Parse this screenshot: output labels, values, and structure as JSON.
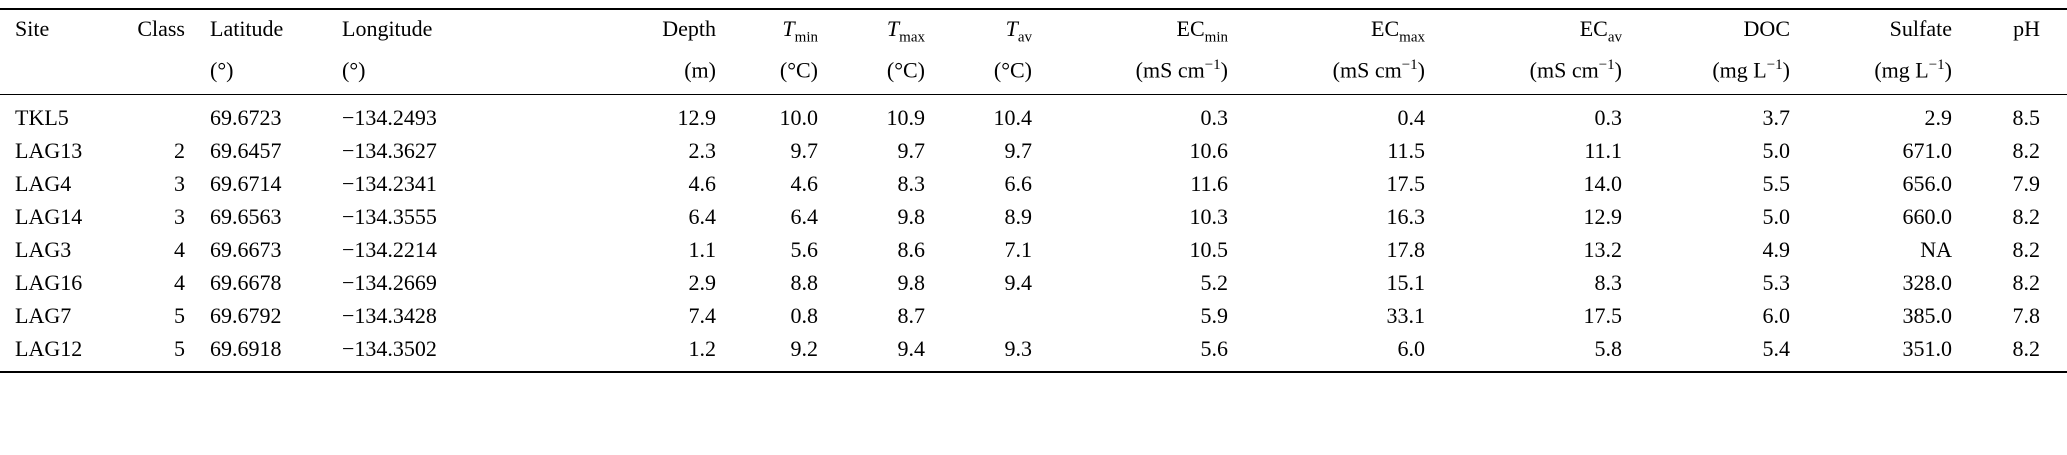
{
  "colors": {
    "text": "#000000",
    "rule": "#000000",
    "background": "#ffffff"
  },
  "table": {
    "columns": [
      {
        "key": "site",
        "label": "Site",
        "sub": "",
        "unit": "",
        "unit_sup": "",
        "unit_end": ""
      },
      {
        "key": "class",
        "label": "Class",
        "sub": "",
        "unit": "",
        "unit_sup": "",
        "unit_end": ""
      },
      {
        "key": "latitude",
        "label": "Latitude",
        "sub": "",
        "unit": "(°)",
        "unit_sup": "",
        "unit_end": ""
      },
      {
        "key": "longitude",
        "label": "Longitude",
        "sub": "",
        "unit": "(°)",
        "unit_sup": "",
        "unit_end": ""
      },
      {
        "key": "depth",
        "label": "Depth",
        "sub": "",
        "unit": "(m)",
        "unit_sup": "",
        "unit_end": ""
      },
      {
        "key": "tmin",
        "label": "T",
        "sub": "min",
        "unit": "(°C)",
        "unit_sup": "",
        "unit_end": ""
      },
      {
        "key": "tmax",
        "label": "T",
        "sub": "max",
        "unit": "(°C)",
        "unit_sup": "",
        "unit_end": ""
      },
      {
        "key": "tav",
        "label": "T",
        "sub": "av",
        "unit": "(°C)",
        "unit_sup": "",
        "unit_end": ""
      },
      {
        "key": "ecmin",
        "label": "EC",
        "sub": "min",
        "unit": "(mS cm",
        "unit_sup": "−1",
        "unit_end": ")"
      },
      {
        "key": "ecmax",
        "label": "EC",
        "sub": "max",
        "unit": "(mS cm",
        "unit_sup": "−1",
        "unit_end": ")"
      },
      {
        "key": "ecav",
        "label": "EC",
        "sub": "av",
        "unit": "(mS cm",
        "unit_sup": "−1",
        "unit_end": ")"
      },
      {
        "key": "doc",
        "label": "DOC",
        "sub": "",
        "unit": "(mg L",
        "unit_sup": "−1",
        "unit_end": ")"
      },
      {
        "key": "sulfate",
        "label": "Sulfate",
        "sub": "",
        "unit": "(mg L",
        "unit_sup": "−1",
        "unit_end": ")"
      },
      {
        "key": "ph",
        "label": "pH",
        "sub": "",
        "unit": "",
        "unit_sup": "",
        "unit_end": ""
      }
    ],
    "rows": [
      [
        "TKL5",
        "",
        "69.6723",
        "−134.2493",
        "12.9",
        "10.0",
        "10.9",
        "10.4",
        "0.3",
        "0.4",
        "0.3",
        "3.7",
        "2.9",
        "8.5"
      ],
      [
        "LAG13",
        "2",
        "69.6457",
        "−134.3627",
        "2.3",
        "9.7",
        "9.7",
        "9.7",
        "10.6",
        "11.5",
        "11.1",
        "5.0",
        "671.0",
        "8.2"
      ],
      [
        "LAG4",
        "3",
        "69.6714",
        "−134.2341",
        "4.6",
        "4.6",
        "8.3",
        "6.6",
        "11.6",
        "17.5",
        "14.0",
        "5.5",
        "656.0",
        "7.9"
      ],
      [
        "LAG14",
        "3",
        "69.6563",
        "−134.3555",
        "6.4",
        "6.4",
        "9.8",
        "8.9",
        "10.3",
        "16.3",
        "12.9",
        "5.0",
        "660.0",
        "8.2"
      ],
      [
        "LAG3",
        "4",
        "69.6673",
        "−134.2214",
        "1.1",
        "5.6",
        "8.6",
        "7.1",
        "10.5",
        "17.8",
        "13.2",
        "4.9",
        "NA",
        "8.2"
      ],
      [
        "LAG16",
        "4",
        "69.6678",
        "−134.2669",
        "2.9",
        "8.8",
        "9.8",
        "9.4",
        "5.2",
        "15.1",
        "8.3",
        "5.3",
        "328.0",
        "8.2"
      ],
      [
        "LAG7",
        "5",
        "69.6792",
        "−134.3428",
        "7.4",
        "0.8",
        "8.7",
        "",
        "5.9",
        "33.1",
        "17.5",
        "6.0",
        "385.0",
        "7.8"
      ],
      [
        "LAG12",
        "5",
        "69.6918",
        "−134.3502",
        "1.2",
        "9.2",
        "9.4",
        "9.3",
        "5.6",
        "6.0",
        "5.8",
        "5.4",
        "351.0",
        "8.2"
      ]
    ]
  }
}
